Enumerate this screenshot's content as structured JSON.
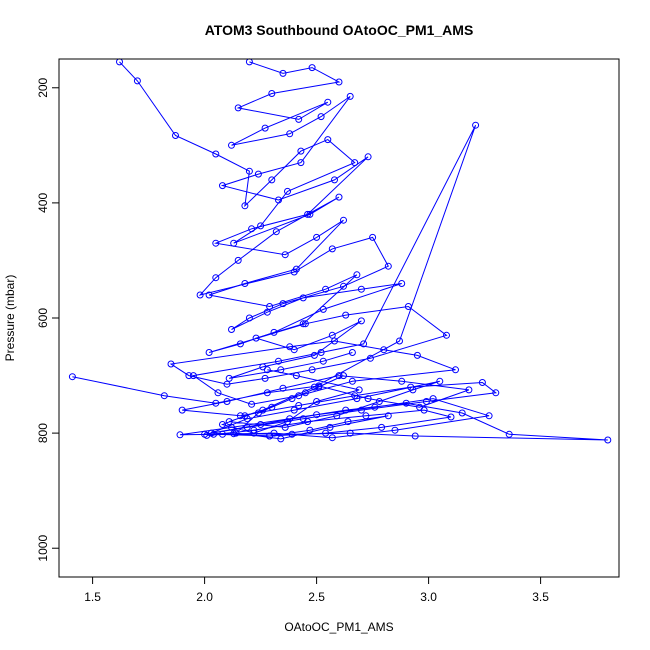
{
  "chart_data": {
    "type": "line",
    "title": "ATOM3 Southbound OAtoOC_PM1_AMS",
    "xlabel": "OAtoOC_PM1_AMS",
    "ylabel": "Pressure (mbar)",
    "xlim": [
      1.35,
      3.85
    ],
    "ylim": [
      1050,
      150
    ],
    "y_reversed": true,
    "x_ticks": [
      1.5,
      2.0,
      2.5,
      3.0,
      3.5
    ],
    "x_tick_labels": [
      "1.5",
      "2.0",
      "2.5",
      "3.0",
      "3.5"
    ],
    "y_ticks": [
      200,
      400,
      600,
      800,
      1000
    ],
    "y_tick_labels": [
      "200",
      "400",
      "600",
      "800",
      "1000"
    ],
    "marker": "open-circle",
    "grid": false,
    "legend": "none",
    "colors": {
      "series": "#0000ff",
      "axis": "#000000"
    },
    "series": [
      {
        "x": [
          1.62,
          1.7,
          1.87,
          2.05,
          2.2,
          2.18,
          2.3,
          2.43,
          2.55,
          2.67,
          2.37,
          2.25,
          2.13,
          2.47,
          2.6,
          2.32,
          2.15,
          2.05,
          1.98,
          2.4,
          2.57,
          2.75,
          2.82,
          2.62,
          2.35,
          2.2,
          2.12,
          2.28,
          2.44,
          2.7,
          2.88,
          2.53,
          2.31,
          2.16,
          2.02,
          2.45,
          2.63,
          2.91,
          3.08,
          2.74,
          2.48,
          2.27,
          2.1,
          1.93,
          1.85,
          2.38,
          2.58,
          2.8,
          2.95,
          3.12,
          2.66,
          2.42,
          2.21,
          2.06,
          1.95,
          2.33,
          2.52,
          2.71,
          3.21,
          2.87,
          2.49,
          2.26,
          2.11,
          2.36,
          2.59,
          2.78,
          2.93,
          3.05,
          2.68,
          2.4,
          2.19,
          2.03,
          2.29,
          2.47,
          2.64,
          2.82,
          2.56,
          2.34,
          2.14,
          2.24,
          2.39,
          2.51,
          2.62,
          2.45,
          2.3,
          2.18,
          2.08,
          2.22,
          2.37,
          2.5,
          2.69,
          2.41,
          2.28
        ],
        "y": [
          155,
          188,
          283,
          315,
          345,
          405,
          360,
          310,
          290,
          330,
          380,
          440,
          470,
          420,
          390,
          450,
          500,
          530,
          560,
          520,
          480,
          460,
          510,
          545,
          575,
          600,
          620,
          590,
          565,
          550,
          540,
          585,
          625,
          645,
          660,
          610,
          595,
          580,
          630,
          670,
          690,
          705,
          715,
          700,
          680,
          650,
          640,
          655,
          665,
          690,
          710,
          735,
          750,
          730,
          700,
          675,
          660,
          645,
          265,
          640,
          720,
          760,
          780,
          790,
          770,
          745,
          725,
          710,
          740,
          760,
          775,
          800,
          805,
          795,
          780,
          770,
          790,
          810,
          800,
          765,
          740,
          720,
          700,
          730,
          755,
          770,
          785,
          800,
          780,
          745,
          725,
          700,
          690
        ]
      },
      {
        "x": [
          1.41,
          1.82,
          2.05,
          2.28,
          2.51,
          2.73,
          2.96,
          3.18,
          2.88,
          2.6,
          2.35,
          2.1,
          1.9,
          2.16,
          2.42,
          2.67,
          2.92,
          3.24,
          3.3,
          2.99,
          2.7,
          2.44,
          2.19,
          2.0,
          2.25,
          2.5,
          2.76,
          3.02,
          3.27,
          2.85,
          2.57,
          2.31,
          2.08,
          1.89,
          2.12,
          2.38,
          2.63,
          2.9,
          3.15,
          3.36,
          3.8,
          2.94,
          2.65,
          2.39,
          2.13,
          2.01,
          2.22,
          2.46,
          2.72,
          2.98,
          3.1,
          2.79,
          2.54,
          2.29,
          2.04
        ],
        "y": [
          702,
          735,
          748,
          730,
          718,
          740,
          755,
          725,
          710,
          700,
          722,
          745,
          760,
          770,
          752,
          735,
          720,
          712,
          730,
          745,
          760,
          775,
          790,
          802,
          785,
          768,
          755,
          740,
          770,
          795,
          808,
          800,
          802,
          803,
          790,
          775,
          760,
          748,
          765,
          802,
          812,
          805,
          800,
          802,
          801,
          804,
          795,
          780,
          770,
          760,
          772,
          790,
          800,
          805,
          802
        ]
      },
      {
        "x": [
          2.2,
          2.35,
          2.48,
          2.6,
          2.3,
          2.15,
          2.42,
          2.55,
          2.27,
          2.12,
          2.38,
          2.52,
          2.65,
          2.43,
          2.24,
          2.08,
          2.33,
          2.58,
          2.73,
          2.46,
          2.21,
          2.05,
          2.36,
          2.5,
          2.62,
          2.41,
          2.18,
          2.02,
          2.29,
          2.54,
          2.68,
          2.44,
          2.23,
          2.4,
          2.57,
          2.7,
          2.49,
          2.26,
          2.11,
          2.34,
          2.53,
          2.66
        ],
        "y": [
          155,
          175,
          165,
          190,
          210,
          235,
          255,
          225,
          270,
          300,
          280,
          250,
          215,
          330,
          350,
          370,
          395,
          360,
          320,
          420,
          445,
          470,
          490,
          460,
          430,
          515,
          540,
          560,
          580,
          550,
          525,
          610,
          635,
          655,
          630,
          605,
          665,
          685,
          705,
          690,
          675,
          660
        ]
      }
    ]
  }
}
